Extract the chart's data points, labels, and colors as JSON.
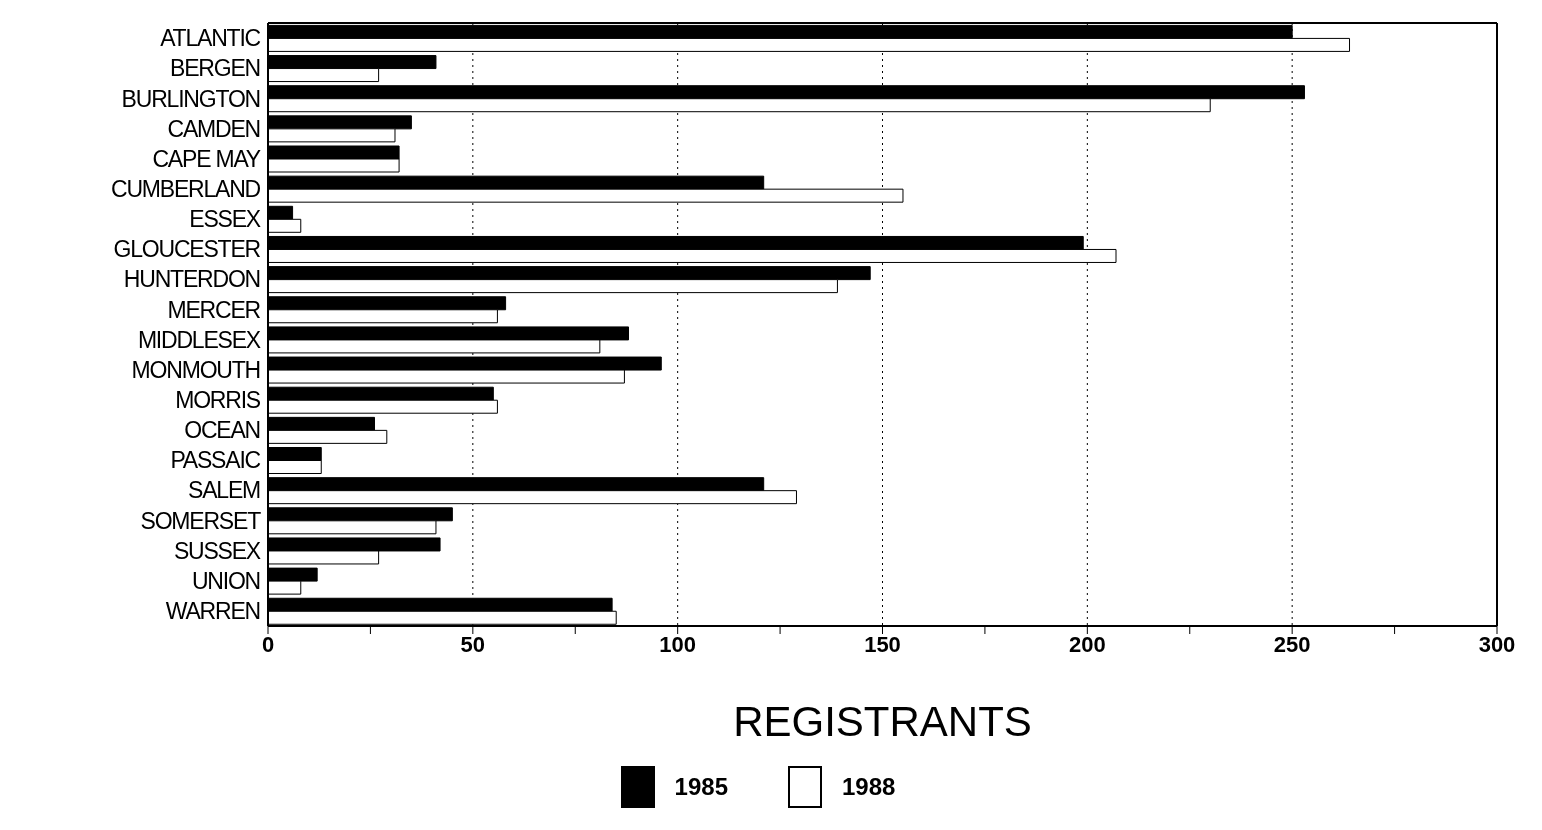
{
  "chart_data": {
    "type": "bar",
    "orientation": "horizontal",
    "xlabel": "REGISTRANTS",
    "categories": [
      "ATLANTIC",
      "BERGEN",
      "BURLINGTON",
      "CAMDEN",
      "CAPE MAY",
      "CUMBERLAND",
      "ESSEX",
      "GLOUCESTER",
      "HUNTERDON",
      "MERCER",
      "MIDDLESEX",
      "MONMOUTH",
      "MORRIS",
      "OCEAN",
      "PASSAIC",
      "SALEM",
      "SOMERSET",
      "SUSSEX",
      "UNION",
      "WARREN"
    ],
    "series": [
      {
        "name": "1985",
        "color": "#000000",
        "values": [
          250,
          41,
          253,
          35,
          32,
          121,
          6,
          199,
          147,
          58,
          88,
          96,
          55,
          26,
          13,
          121,
          45,
          42,
          12,
          84
        ]
      },
      {
        "name": "1988",
        "color": "#ffffff",
        "values": [
          264,
          27,
          230,
          31,
          32,
          155,
          8,
          207,
          139,
          56,
          81,
          87,
          56,
          29,
          13,
          129,
          41,
          27,
          8,
          85
        ]
      }
    ],
    "xlim": [
      0,
      300
    ],
    "xticks": [
      0,
      {
        "value": 25,
        "label": null
      },
      50,
      {
        "value": 75,
        "label": null
      },
      100,
      {
        "value": 125,
        "label": null
      },
      150,
      {
        "value": 175,
        "label": null
      },
      200,
      {
        "value": 225,
        "label": null
      },
      250,
      {
        "value": 275,
        "label": null
      },
      300
    ],
    "grid": "x",
    "legend": "bottom"
  }
}
